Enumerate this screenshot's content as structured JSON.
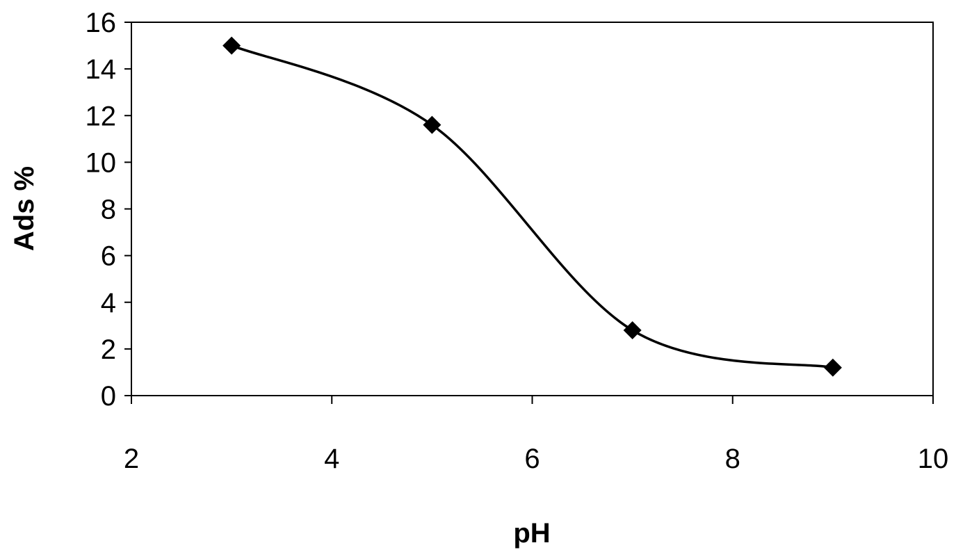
{
  "chart_data": {
    "type": "scatter",
    "title": "",
    "xlabel": "pH",
    "ylabel": "Ads %",
    "xlim": [
      2,
      10
    ],
    "ylim": [
      0,
      16
    ],
    "x_ticks": [
      2,
      4,
      6,
      8,
      10
    ],
    "y_ticks": [
      0,
      2,
      4,
      6,
      8,
      10,
      12,
      14,
      16
    ],
    "grid": false,
    "legend": "none",
    "series": [
      {
        "x": [
          3,
          5,
          7,
          9
        ],
        "y": [
          15.0,
          11.6,
          2.8,
          1.2
        ],
        "line": "smoothed",
        "marker": "diamond",
        "color": "#000000"
      }
    ]
  }
}
